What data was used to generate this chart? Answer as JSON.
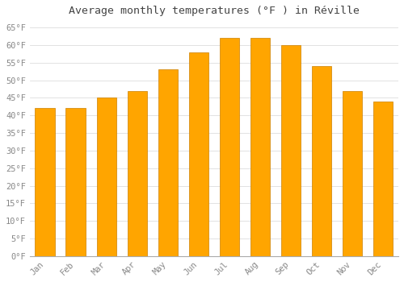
{
  "title": "Average monthly temperatures (°F ) in Réville",
  "months": [
    "Jan",
    "Feb",
    "Mar",
    "Apr",
    "May",
    "Jun",
    "Jul",
    "Aug",
    "Sep",
    "Oct",
    "Nov",
    "Dec"
  ],
  "values": [
    42,
    42,
    45,
    47,
    53,
    58,
    62,
    62,
    60,
    54,
    47,
    44
  ],
  "bar_color_face": "#FFA500",
  "bar_color_edge": "#CC8000",
  "background_color": "#FFFFFF",
  "grid_color": "#DDDDDD",
  "ylim": [
    0,
    67
  ],
  "yticks": [
    0,
    5,
    10,
    15,
    20,
    25,
    30,
    35,
    40,
    45,
    50,
    55,
    60,
    65
  ],
  "ytick_labels": [
    "0°F",
    "5°F",
    "10°F",
    "15°F",
    "20°F",
    "25°F",
    "30°F",
    "35°F",
    "40°F",
    "45°F",
    "50°F",
    "55°F",
    "60°F",
    "65°F"
  ],
  "title_fontsize": 9.5,
  "tick_fontsize": 7.5,
  "tick_color": "#888888",
  "spine_color": "#AAAAAA",
  "title_color": "#444444"
}
